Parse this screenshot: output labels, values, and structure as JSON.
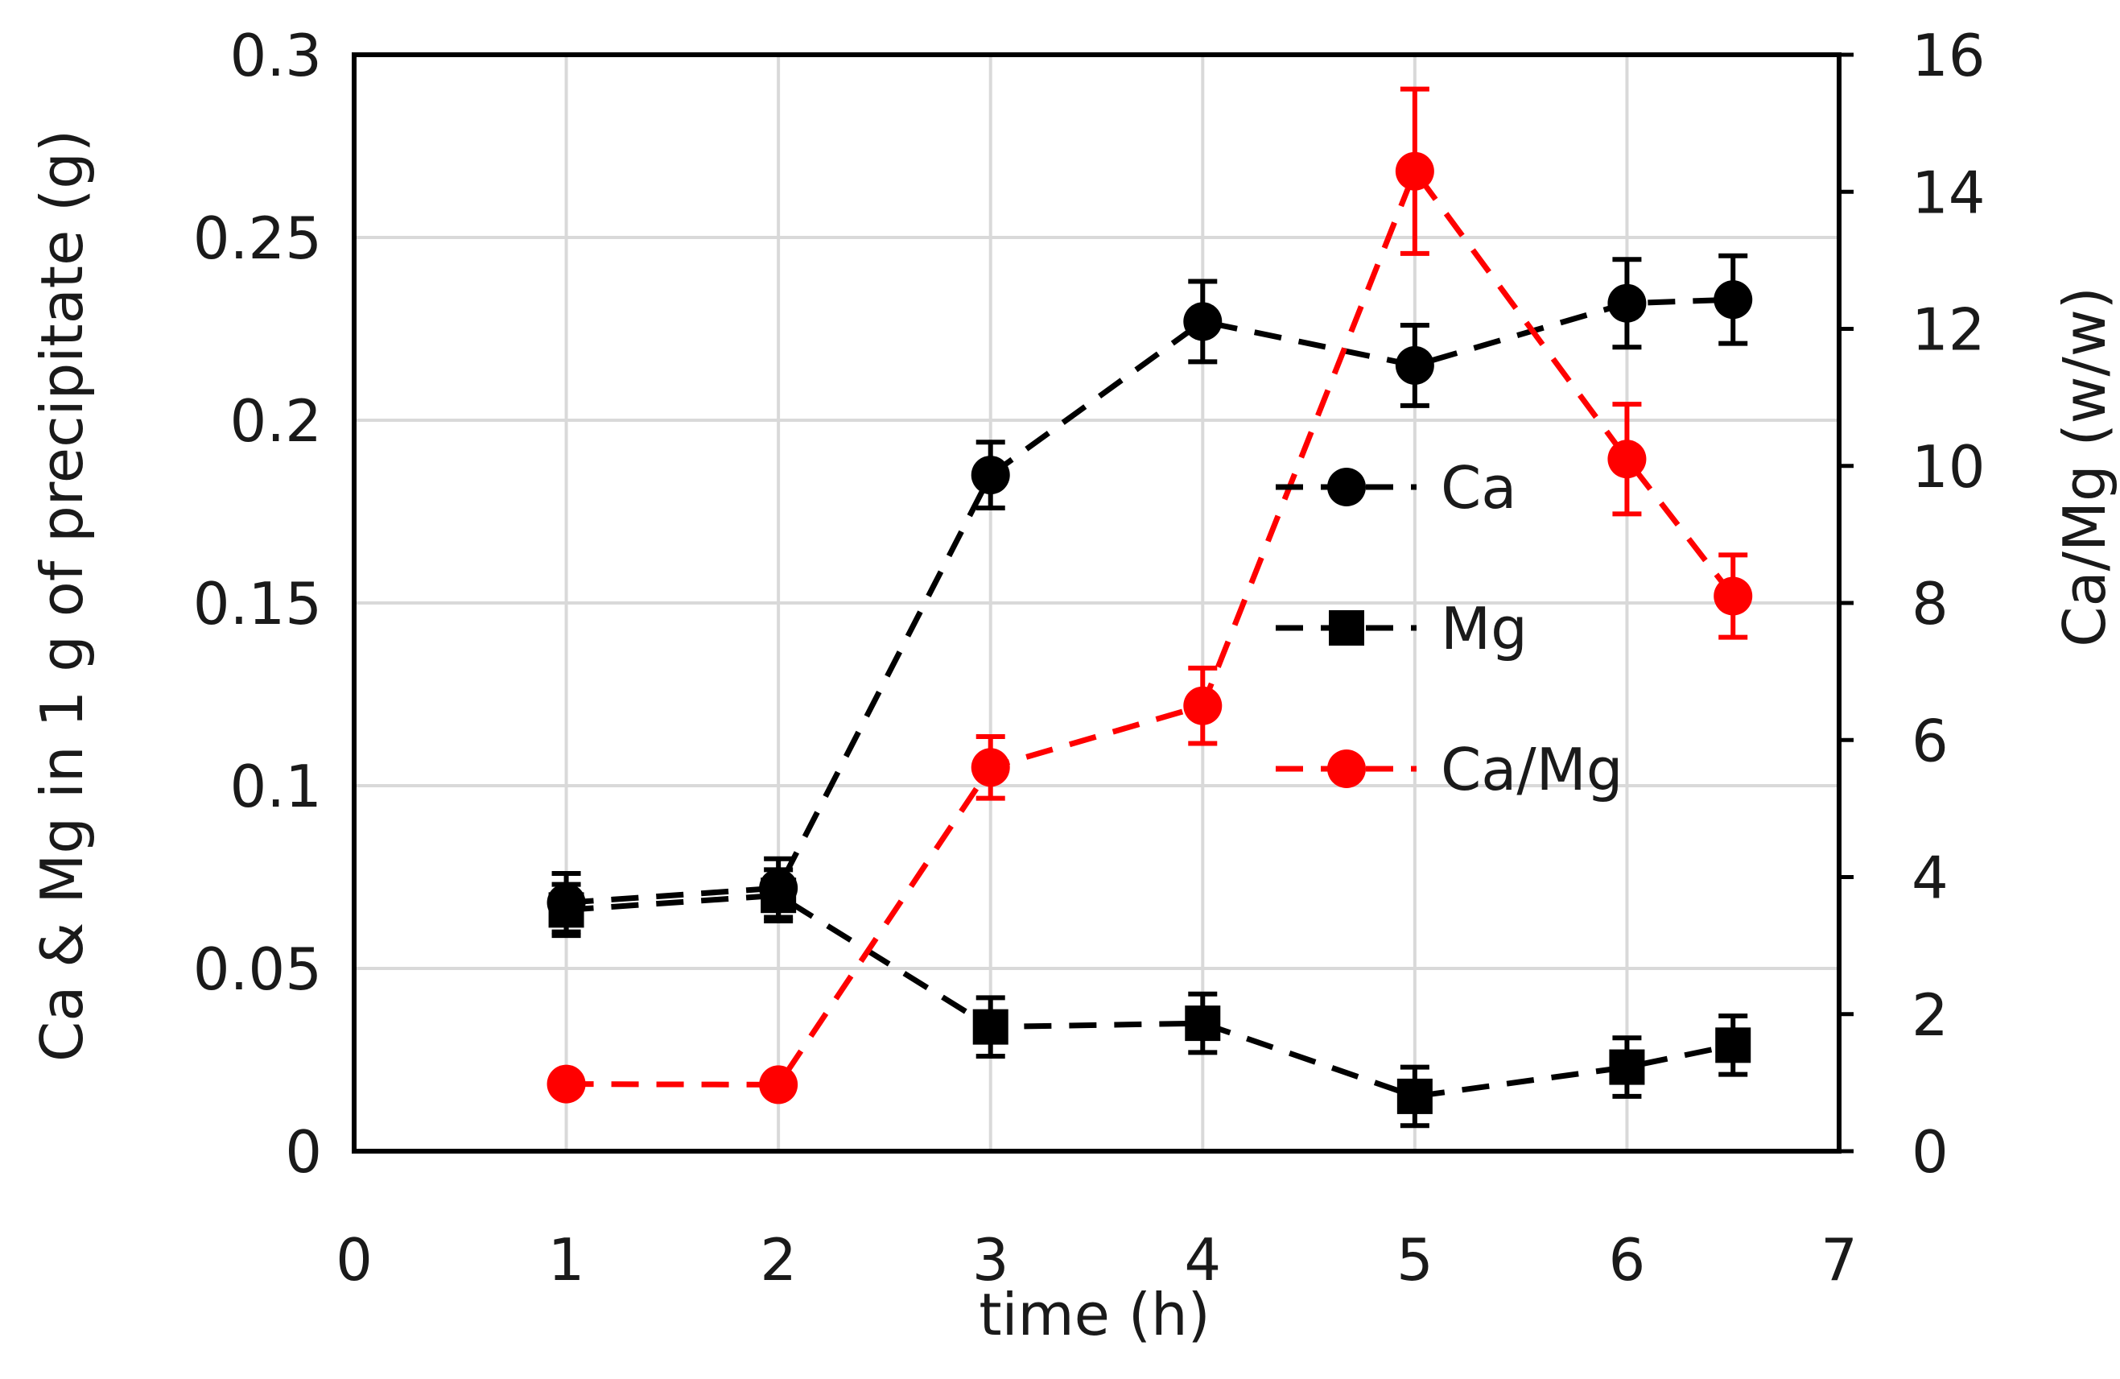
{
  "chart_data": {
    "type": "line",
    "title": "",
    "xlabel": "time (h)",
    "ylabel": "Ca & Mg in 1 g of precipitate (g)",
    "y2label": "Ca/Mg (w/w)",
    "xlim": [
      0,
      7
    ],
    "ylim": [
      0,
      0.3
    ],
    "y2lim": [
      0,
      16
    ],
    "x_ticks": [
      0,
      1,
      2,
      3,
      4,
      5,
      6,
      7
    ],
    "x_tick_labels": [
      "0",
      "1",
      "2",
      "3",
      "4",
      "5",
      "6",
      "7"
    ],
    "y_ticks": [
      0,
      0.05,
      0.1,
      0.15,
      0.2,
      0.25,
      0.3
    ],
    "y_tick_labels": [
      "0",
      "0.05",
      "0.1",
      "0.15",
      "0.2",
      "0.25",
      "0.3"
    ],
    "y2_ticks": [
      0,
      2,
      4,
      6,
      8,
      10,
      12,
      14,
      16
    ],
    "y2_tick_labels": [
      "0",
      "2",
      "4",
      "6",
      "8",
      "10",
      "12",
      "14",
      "16"
    ],
    "grid": true,
    "legend_position": "center-right",
    "series": [
      {
        "name": "Ca",
        "axis": "left",
        "marker": "circle",
        "color": "#000000",
        "x": [
          1,
          2,
          3,
          4,
          5,
          6,
          6.5
        ],
        "values": [
          0.068,
          0.072,
          0.185,
          0.227,
          0.215,
          0.232,
          0.233
        ],
        "errors": [
          0.008,
          0.008,
          0.009,
          0.011,
          0.011,
          0.012,
          0.012
        ]
      },
      {
        "name": "Mg",
        "axis": "left",
        "marker": "square",
        "color": "#000000",
        "x": [
          1,
          2,
          3,
          4,
          5,
          6,
          6.5
        ],
        "values": [
          0.066,
          0.07,
          0.034,
          0.035,
          0.015,
          0.023,
          0.029
        ],
        "errors": [
          0.007,
          0.007,
          0.008,
          0.008,
          0.008,
          0.008,
          0.008
        ]
      },
      {
        "name": "Ca/Mg",
        "axis": "right",
        "marker": "circle",
        "color": "#ff0000",
        "x": [
          1,
          2,
          3,
          4,
          5,
          6,
          6.5
        ],
        "values": [
          0.98,
          0.97,
          5.6,
          6.5,
          14.3,
          10.1,
          8.1
        ],
        "errors": [
          0,
          0,
          0.45,
          0.55,
          1.2,
          0.8,
          0.6
        ]
      }
    ]
  }
}
